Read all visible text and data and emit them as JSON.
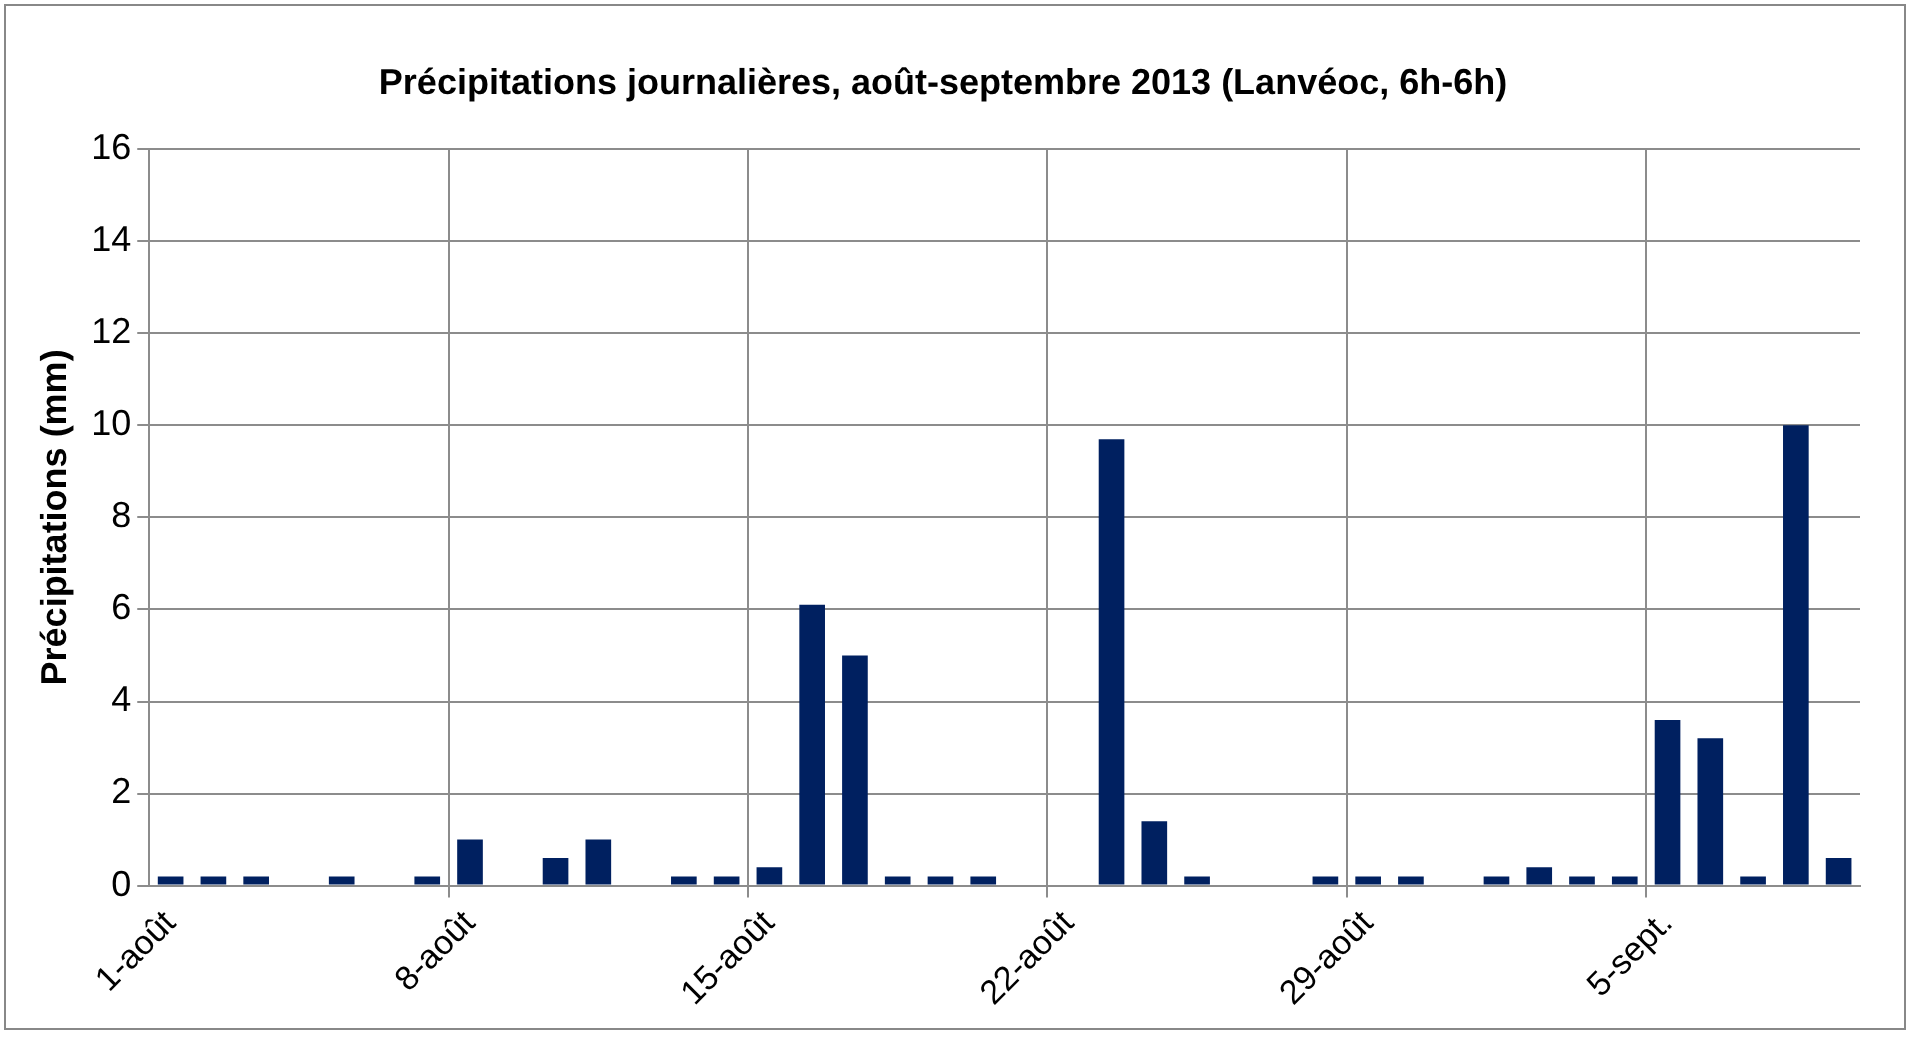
{
  "chart_data": {
    "type": "bar",
    "title": "Précipitations journalières, août-septembre 2013 (Lanvéoc, 6h-6h)",
    "ylabel": "Précipitations (mm)",
    "categories": [
      "1-août",
      null,
      null,
      null,
      null,
      null,
      null,
      "8-août",
      null,
      null,
      null,
      null,
      null,
      null,
      "15-août",
      null,
      null,
      null,
      null,
      null,
      null,
      "22-août",
      null,
      null,
      null,
      null,
      null,
      null,
      "29-août",
      null,
      null,
      null,
      null,
      null,
      null,
      "5-sept.",
      null,
      null,
      null,
      null
    ],
    "values": [
      0.2,
      0.2,
      0.2,
      0,
      0.2,
      0,
      0.2,
      1.0,
      0,
      0.6,
      1.0,
      0,
      0.2,
      0.2,
      0.4,
      6.1,
      5.0,
      0.2,
      0.2,
      0.2,
      0,
      0,
      9.7,
      1.4,
      0.2,
      0,
      0,
      0.2,
      0.2,
      0.2,
      0,
      0.2,
      0.4,
      0.2,
      0.2,
      3.6,
      3.2,
      0.2,
      10.0,
      0.6
    ],
    "color": "#002060",
    "ylim": [
      0,
      16
    ],
    "yticks": [
      0,
      2,
      4,
      6,
      8,
      10,
      12,
      14,
      16
    ],
    "grid": true,
    "legend": false
  }
}
